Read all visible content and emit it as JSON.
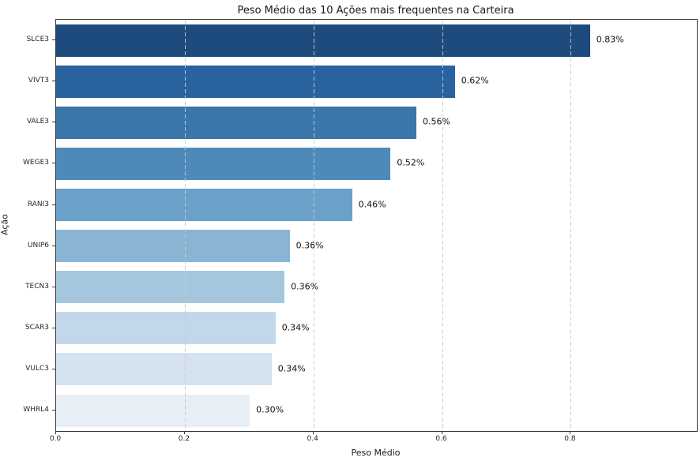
{
  "chart_data": {
    "type": "bar",
    "orientation": "horizontal",
    "title": "Peso Médio das 10 Ações mais frequentes na Carteira",
    "xlabel": "Peso Médio",
    "ylabel": "Ação",
    "categories": [
      "SLCE3",
      "VIVT3",
      "VALE3",
      "WEGE3",
      "RANI3",
      "UNIP6",
      "TECN3",
      "SCAR3",
      "VULC3",
      "WHRL4"
    ],
    "values": [
      0.83,
      0.62,
      0.56,
      0.52,
      0.46,
      0.363,
      0.355,
      0.341,
      0.335,
      0.301
    ],
    "value_labels": [
      "0.83%",
      "0.62%",
      "0.56%",
      "0.52%",
      "0.46%",
      "0.36%",
      "0.36%",
      "0.34%",
      "0.34%",
      "0.30%"
    ],
    "bar_colors": [
      "#1d4b7d",
      "#2a629f",
      "#3b76ab",
      "#4e8ab9",
      "#6ba0c8",
      "#89b4d3",
      "#a5c7de",
      "#c2d7ea",
      "#d5e3f0",
      "#e7eef6"
    ],
    "xlim": [
      0,
      0.996
    ],
    "x_ticks": [
      "0.0",
      "0.2",
      "0.4",
      "0.6",
      "0.8"
    ],
    "x_tick_values": [
      0.0,
      0.2,
      0.4,
      0.6,
      0.8
    ],
    "grid": "x-dashed",
    "legend": "none",
    "background_color": "#ffffff",
    "spine_color": "#3a3a3a",
    "grid_color": "#c9c9c9"
  }
}
